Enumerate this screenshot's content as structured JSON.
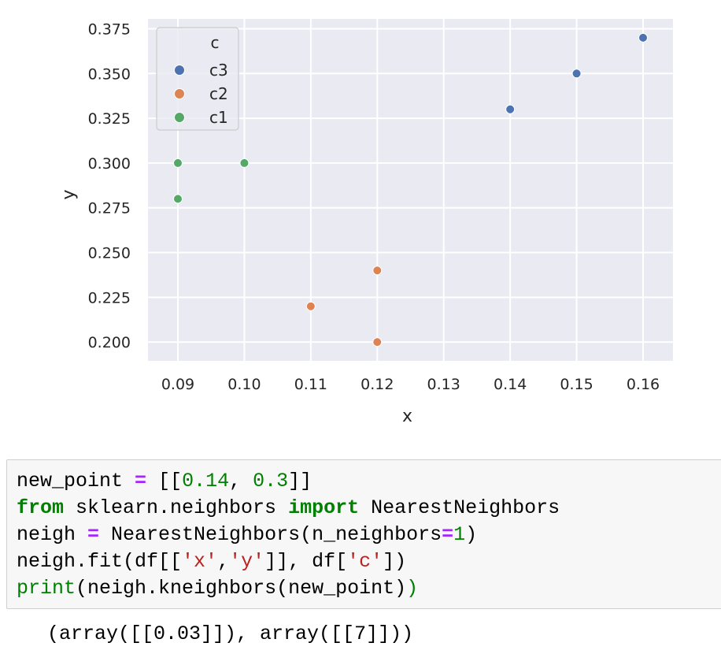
{
  "chart_data": {
    "type": "scatter",
    "xlabel": "x",
    "ylabel": "y",
    "xlim": [
      0.0855,
      0.1645
    ],
    "ylim": [
      0.1895,
      0.3805
    ],
    "xticks": [
      "0.09",
      "0.10",
      "0.11",
      "0.12",
      "0.13",
      "0.14",
      "0.15",
      "0.16"
    ],
    "yticks": [
      "0.200",
      "0.225",
      "0.250",
      "0.275",
      "0.300",
      "0.325",
      "0.350",
      "0.375"
    ],
    "grid": true,
    "legend": {
      "title": "c",
      "placement": "top-left"
    },
    "series": [
      {
        "name": "c3",
        "color": "#4c72b0",
        "points": [
          [
            0.14,
            0.33
          ],
          [
            0.15,
            0.35
          ],
          [
            0.16,
            0.37
          ]
        ]
      },
      {
        "name": "c2",
        "color": "#dd8452",
        "points": [
          [
            0.11,
            0.22
          ],
          [
            0.12,
            0.24
          ],
          [
            0.12,
            0.2
          ]
        ]
      },
      {
        "name": "c1",
        "color": "#55a868",
        "points": [
          [
            0.09,
            0.3
          ],
          [
            0.1,
            0.3
          ],
          [
            0.09,
            0.28
          ]
        ]
      }
    ]
  },
  "code_cell": {
    "lines": [
      [
        {
          "t": "new_point "
        },
        {
          "t": "=",
          "c": "op"
        },
        {
          "t": " [["
        },
        {
          "t": "0.14",
          "c": "num"
        },
        {
          "t": ", "
        },
        {
          "t": "0.3",
          "c": "num"
        },
        {
          "t": "]]"
        }
      ],
      [
        {
          "t": "from",
          "c": "kw"
        },
        {
          "t": " sklearn.neighbors "
        },
        {
          "t": "import",
          "c": "kw"
        },
        {
          "t": " NearestNeighbors"
        }
      ],
      [
        {
          "t": "neigh "
        },
        {
          "t": "=",
          "c": "op"
        },
        {
          "t": " NearestNeighbors(n_neighbors"
        },
        {
          "t": "=",
          "c": "op"
        },
        {
          "t": "1",
          "c": "num"
        },
        {
          "t": ")"
        }
      ],
      [
        {
          "t": "neigh.fit(df[["
        },
        {
          "t": "'x'",
          "c": "str"
        },
        {
          "t": ","
        },
        {
          "t": "'y'",
          "c": "str"
        },
        {
          "t": "]], df["
        },
        {
          "t": "'c'",
          "c": "str"
        },
        {
          "t": "])"
        }
      ],
      [
        {
          "t": "print",
          "c": "bi"
        },
        {
          "t": "("
        },
        {
          "t": "neigh.kneighbors(new_point)"
        },
        {
          "t": ")",
          "c": "bi"
        }
      ]
    ]
  },
  "output": {
    "text": "(array([[0.03]]), array([[7]]))"
  }
}
